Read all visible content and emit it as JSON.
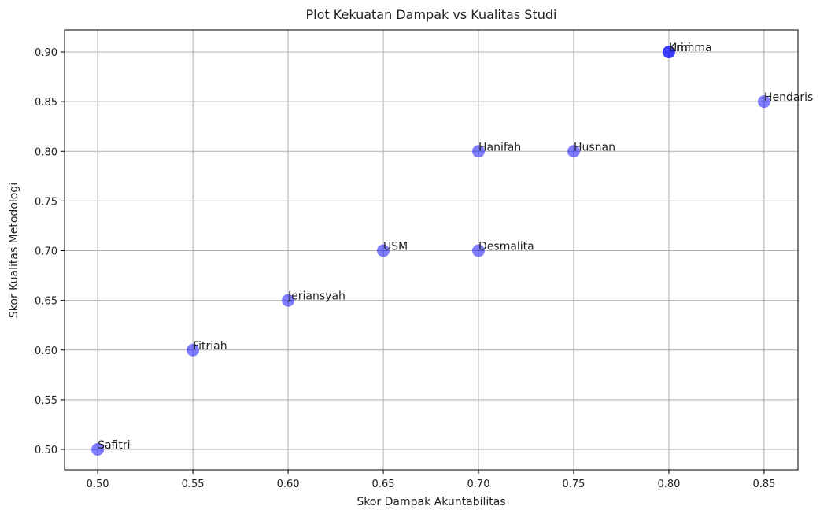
{
  "chart_data": {
    "type": "scatter",
    "title": "Plot Kekuatan Dampak vs Kualitas Studi",
    "xlabel": "Skor Dampak Akuntabilitas",
    "ylabel": "Skor Kualitas Metodologi",
    "labels": [
      "Safitri",
      "Fitriah",
      "Jeriansyah",
      "USM",
      "Desmalita",
      "Hanifah",
      "Husnan",
      "Umi",
      "Krimma",
      "Hendaris"
    ],
    "x": [
      0.5,
      0.55,
      0.6,
      0.65,
      0.7,
      0.7,
      0.75,
      0.8,
      0.8,
      0.85
    ],
    "y": [
      0.5,
      0.6,
      0.65,
      0.7,
      0.7,
      0.8,
      0.8,
      0.9,
      0.9,
      0.85
    ],
    "color": "#0000ff",
    "alpha": 0.5,
    "grid": true,
    "xlim": [
      0.4826,
      0.8678
    ],
    "ylim": [
      0.4794,
      0.9222
    ],
    "xticks": [
      {
        "value": 0.5,
        "label": "0.50"
      },
      {
        "value": 0.55,
        "label": "0.55"
      },
      {
        "value": 0.6,
        "label": "0.60"
      },
      {
        "value": 0.65,
        "label": "0.65"
      },
      {
        "value": 0.7,
        "label": "0.70"
      },
      {
        "value": 0.75,
        "label": "0.75"
      },
      {
        "value": 0.8,
        "label": "0.80"
      },
      {
        "value": 0.85,
        "label": "0.85"
      }
    ],
    "yticks": [
      {
        "value": 0.5,
        "label": "0.50"
      },
      {
        "value": 0.55,
        "label": "0.55"
      },
      {
        "value": 0.6,
        "label": "0.60"
      },
      {
        "value": 0.65,
        "label": "0.65"
      },
      {
        "value": 0.7,
        "label": "0.70"
      },
      {
        "value": 0.75,
        "label": "0.75"
      },
      {
        "value": 0.8,
        "label": "0.80"
      },
      {
        "value": 0.85,
        "label": "0.85"
      },
      {
        "value": 0.9,
        "label": "0.90"
      }
    ]
  }
}
